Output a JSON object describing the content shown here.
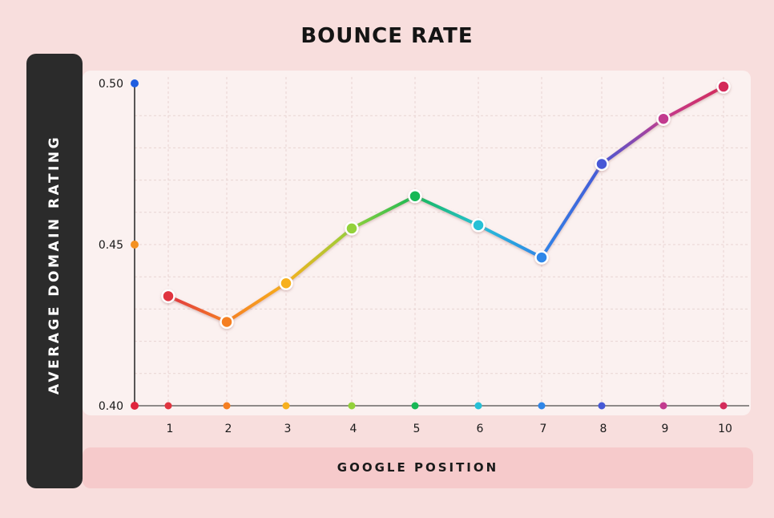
{
  "chart_data": {
    "type": "line",
    "title": "BOUNCE RATE",
    "xlabel": "GOOGLE POSITION",
    "ylabel": "AVERAGE DOMAIN RATING",
    "x": [
      1,
      2,
      3,
      4,
      5,
      6,
      7,
      8,
      9,
      10
    ],
    "x_tick_labels": [
      "1",
      "2",
      "3",
      "4",
      "5",
      "6",
      "7",
      "8",
      "9",
      "10"
    ],
    "y_ticks": [
      0.4,
      0.45,
      0.5
    ],
    "y_tick_labels": [
      "0.40",
      "0.45",
      "0.50"
    ],
    "ylim": [
      0.4,
      0.5
    ],
    "series": [
      {
        "values": [
          0.434,
          0.426,
          0.438,
          0.455,
          0.465,
          0.456,
          0.446,
          0.475,
          0.489,
          0.499
        ]
      }
    ],
    "grid": true,
    "legend": "none",
    "colors": {
      "points": [
        "#e03540",
        "#f57f22",
        "#f7b01e",
        "#93d13a",
        "#18b856",
        "#27c0d6",
        "#2f86e8",
        "#4659d6",
        "#c23b8f",
        "#d42b5a"
      ],
      "y_tick_markers": [
        "#e0253d",
        "#f39121",
        "#1f5ee0"
      ],
      "axis": "#222222",
      "grid": "#e8d4d2"
    }
  }
}
